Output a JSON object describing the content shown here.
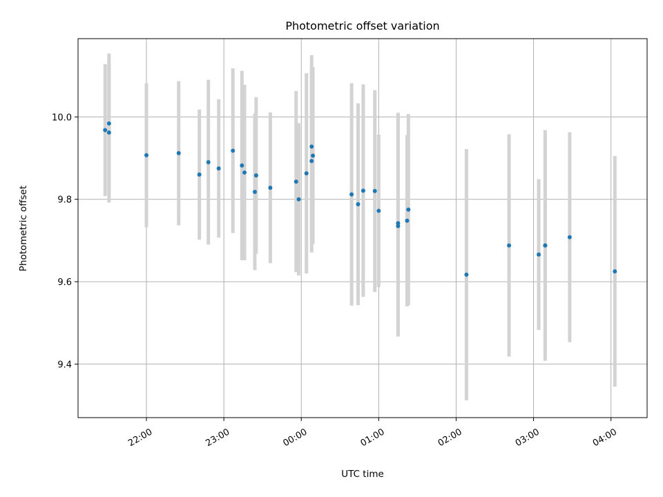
{
  "chart_data": {
    "type": "scatter",
    "title": "Photometric offset variation",
    "xlabel": "UTC time",
    "ylabel": "Photometric offset",
    "x_ticks": [
      "22:00",
      "23:00",
      "00:00",
      "01:00",
      "02:00",
      "03:00",
      "04:00"
    ],
    "y_ticks": [
      "9.4",
      "9.6",
      "9.8",
      "10.0"
    ],
    "ylim": [
      9.27,
      10.19
    ],
    "xlim": [
      "21:07",
      "04:28"
    ],
    "grid": true,
    "point_color": "#1f77b4",
    "errorbar_color": "#d3d3d3",
    "points": [
      {
        "t": "21:28",
        "y": 9.968,
        "err": 0.16
      },
      {
        "t": "21:31",
        "y": 9.984,
        "err": 0.17
      },
      {
        "t": "21:31",
        "y": 9.962,
        "err": 0.17
      },
      {
        "t": "22:00",
        "y": 9.907,
        "err": 0.175
      },
      {
        "t": "22:25",
        "y": 9.912,
        "err": 0.175
      },
      {
        "t": "22:41",
        "y": 9.86,
        "err": 0.158
      },
      {
        "t": "22:48",
        "y": 9.89,
        "err": 0.2
      },
      {
        "t": "22:56",
        "y": 9.875,
        "err": 0.168
      },
      {
        "t": "23:07",
        "y": 9.918,
        "err": 0.2
      },
      {
        "t": "23:14",
        "y": 9.882,
        "err": 0.23
      },
      {
        "t": "23:16",
        "y": 9.865,
        "err": 0.213
      },
      {
        "t": "23:24",
        "y": 9.818,
        "err": 0.19
      },
      {
        "t": "23:25",
        "y": 9.858,
        "err": 0.19
      },
      {
        "t": "23:36",
        "y": 9.828,
        "err": 0.183
      },
      {
        "t": "23:56",
        "y": 9.843,
        "err": 0.22
      },
      {
        "t": "23:58",
        "y": 9.8,
        "err": 0.185
      },
      {
        "t": "00:04",
        "y": 9.863,
        "err": 0.243
      },
      {
        "t": "00:08",
        "y": 9.928,
        "err": 0.222
      },
      {
        "t": "00:08",
        "y": 9.893,
        "err": 0.222
      },
      {
        "t": "00:09",
        "y": 9.906,
        "err": 0.215
      },
      {
        "t": "00:39",
        "y": 9.812,
        "err": 0.27
      },
      {
        "t": "00:44",
        "y": 9.788,
        "err": 0.245
      },
      {
        "t": "00:48",
        "y": 9.821,
        "err": 0.258
      },
      {
        "t": "00:57",
        "y": 9.82,
        "err": 0.245
      },
      {
        "t": "01:00",
        "y": 9.772,
        "err": 0.185
      },
      {
        "t": "01:15",
        "y": 9.742,
        "err": 0.268
      },
      {
        "t": "01:15",
        "y": 9.735,
        "err": 0.268
      },
      {
        "t": "01:22",
        "y": 9.748,
        "err": 0.208
      },
      {
        "t": "01:23",
        "y": 9.775,
        "err": 0.232
      },
      {
        "t": "02:08",
        "y": 9.617,
        "err": 0.305
      },
      {
        "t": "02:41",
        "y": 9.688,
        "err": 0.27
      },
      {
        "t": "03:04",
        "y": 9.666,
        "err": 0.183
      },
      {
        "t": "03:09",
        "y": 9.688,
        "err": 0.262
      },
      {
        "t": "03:09",
        "y": 9.688,
        "err": 0.28
      },
      {
        "t": "03:28",
        "y": 9.708,
        "err": 0.255
      },
      {
        "t": "04:03",
        "y": 9.625,
        "err": 0.28
      }
    ]
  }
}
